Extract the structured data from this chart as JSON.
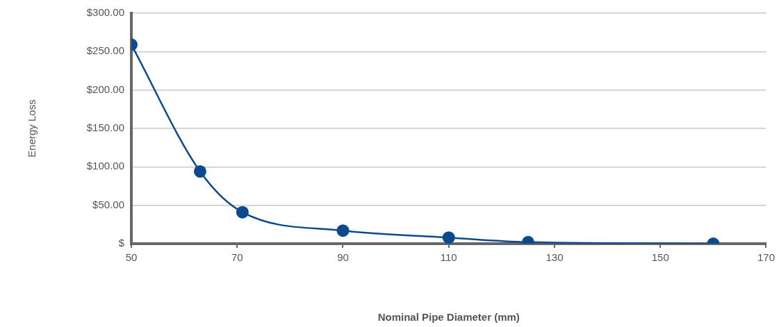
{
  "chart_data": {
    "type": "line",
    "xlabel": "Nominal Pipe Diameter (mm)",
    "ylabel": "Energy Loss",
    "x": [
      50,
      63,
      71,
      90,
      110,
      125,
      160
    ],
    "series": [
      {
        "color": "#0b4a8f",
        "values": [
          259,
          94,
          41,
          17,
          8,
          2,
          0
        ]
      }
    ],
    "xlim": [
      50,
      170
    ],
    "xticks": [
      50,
      70,
      90,
      110,
      130,
      150,
      170
    ],
    "ylim": [
      0,
      300
    ],
    "yticks": [
      {
        "value": 0,
        "label": "$"
      },
      {
        "value": 50,
        "label": "$50.00"
      },
      {
        "value": 100,
        "label": "$100.00"
      },
      {
        "value": 150,
        "label": "$150.00"
      },
      {
        "value": 200,
        "label": "$200.00"
      },
      {
        "value": 250,
        "label": "$250.00"
      },
      {
        "value": 300,
        "label": "$300.00"
      }
    ],
    "grid": "y",
    "legend": false,
    "marker": "circle",
    "line_style": "solid"
  }
}
